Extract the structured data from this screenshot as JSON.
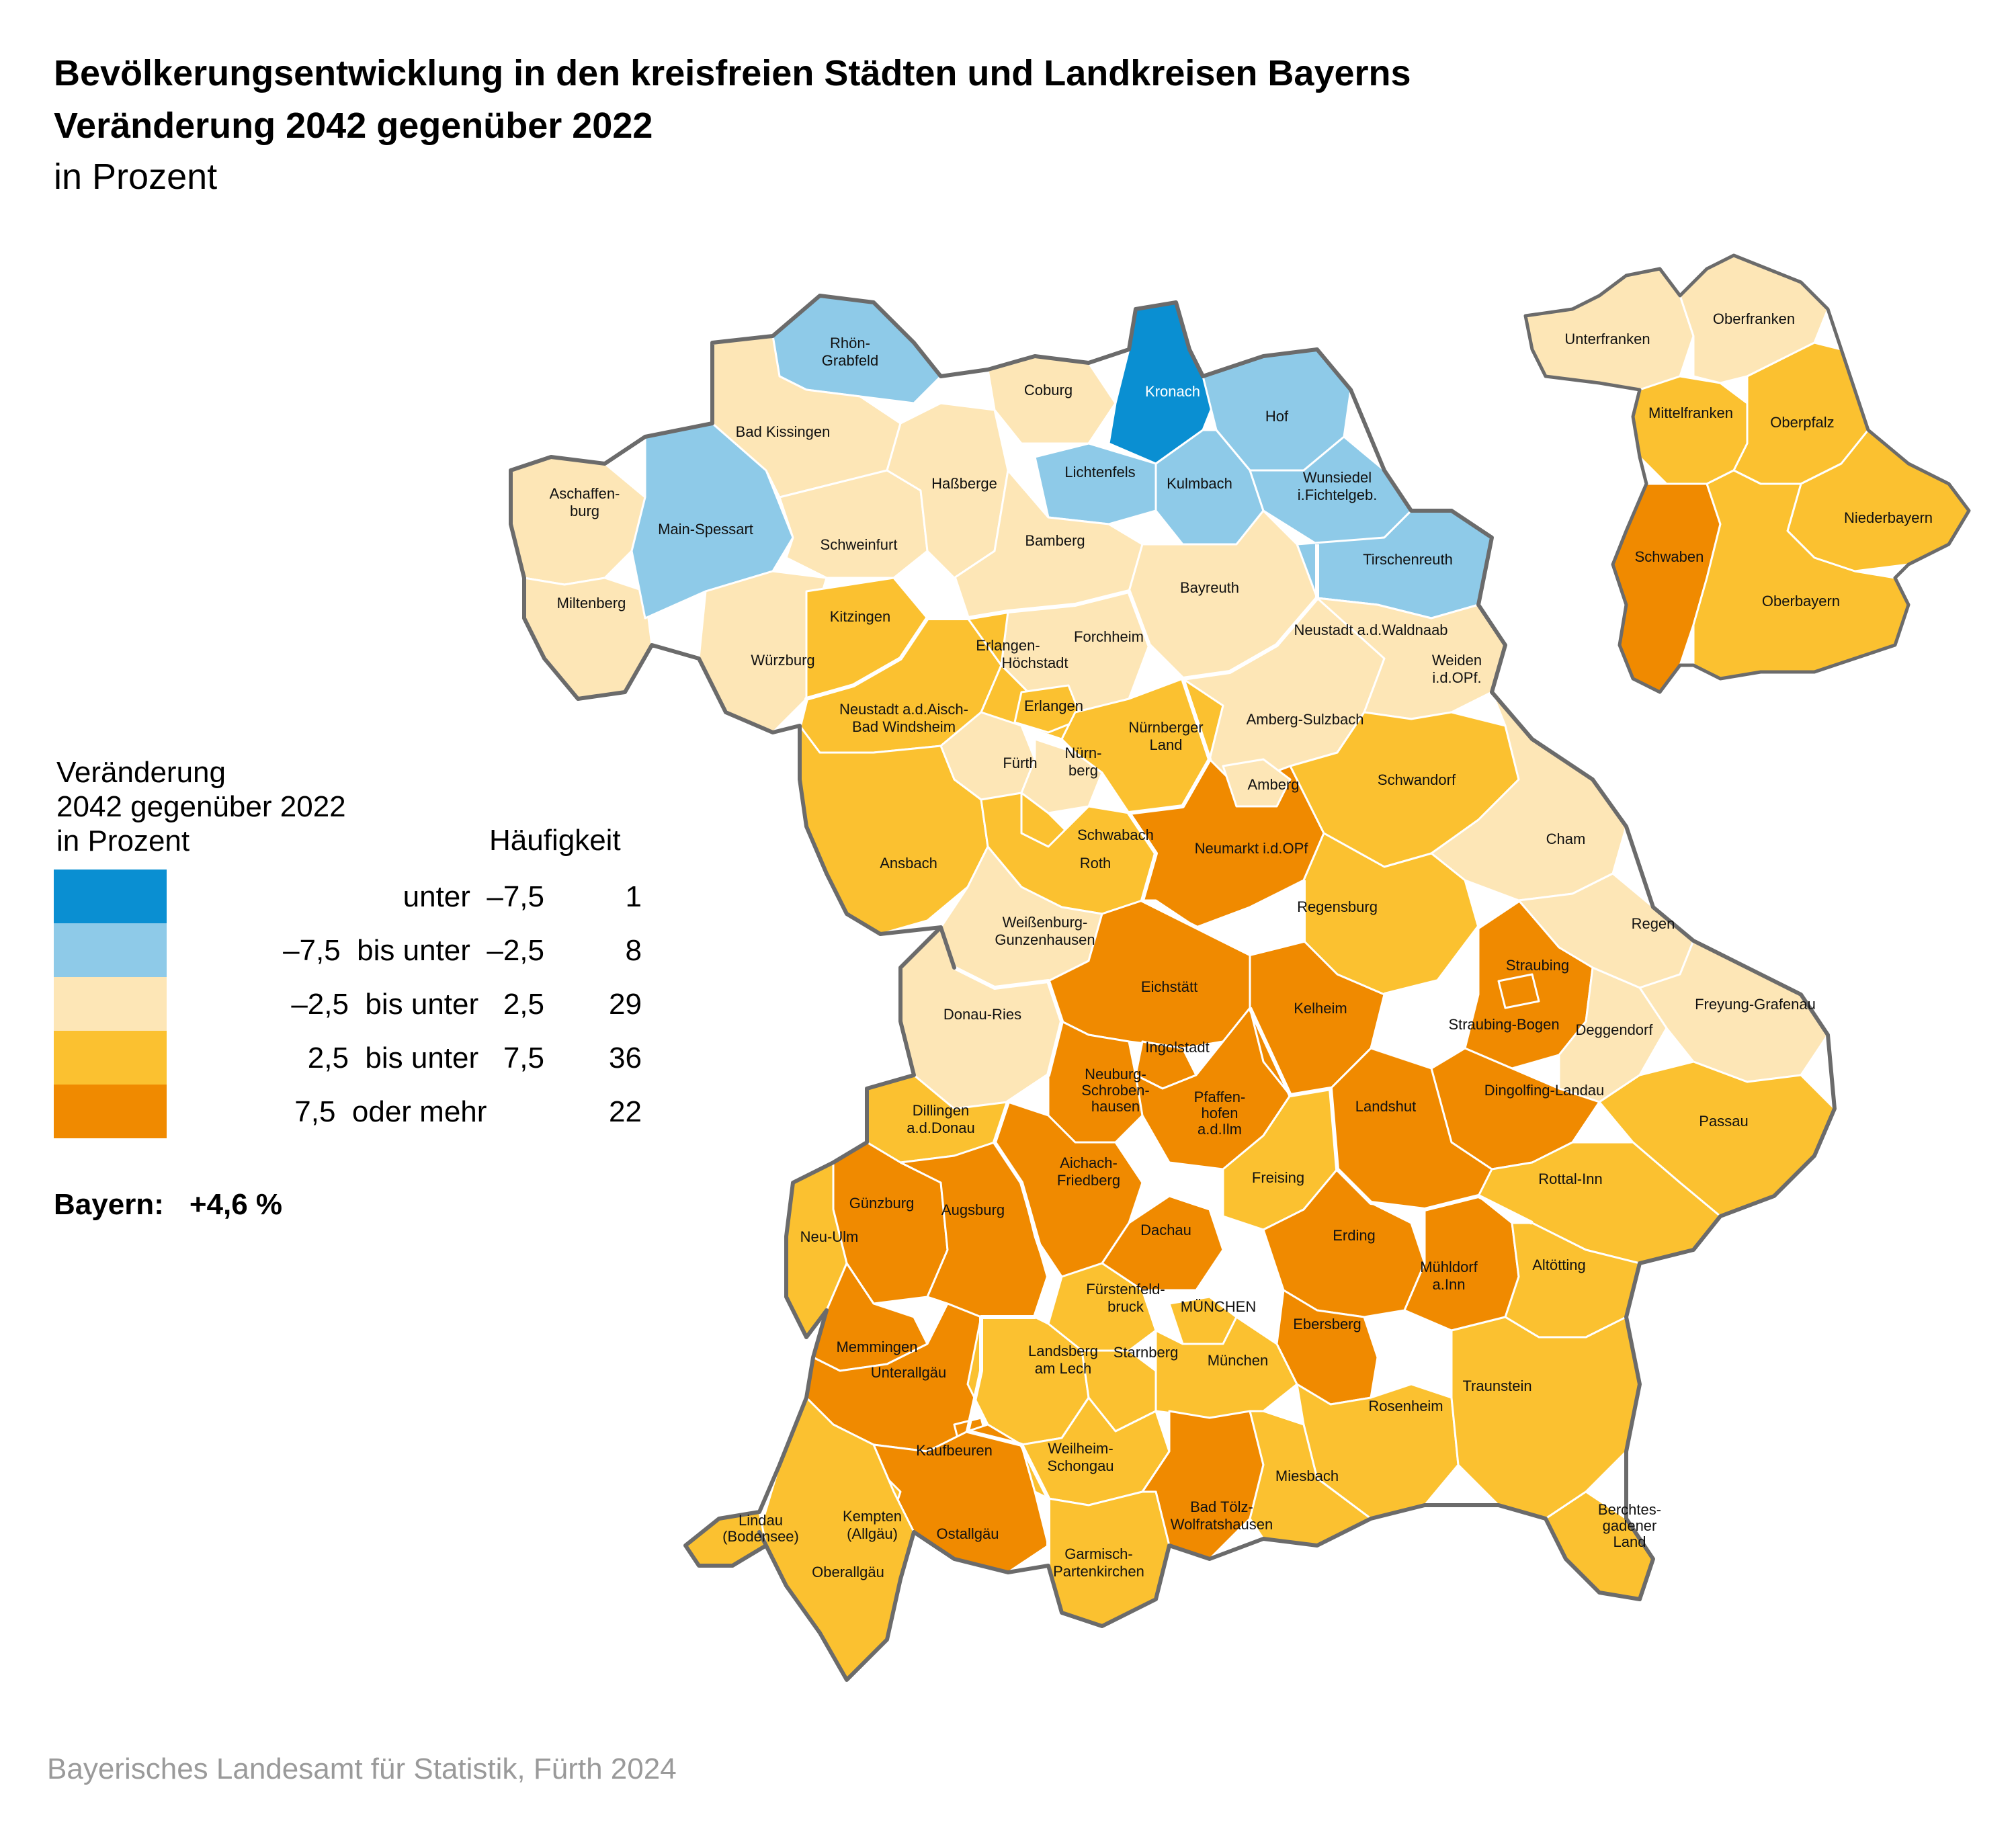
{
  "header": {
    "title_line1": "Bevölkerungsentwicklung in den kreisfreien Städten und Landkreisen Bayerns",
    "title_line2": "Veränderung 2042 gegenüber 2022",
    "title_line3": "in Prozent"
  },
  "colors": {
    "dark_blue": "#0a8fd2",
    "light_blue": "#8ecae8",
    "beige": "#fde6b6",
    "yellow": "#fbc130",
    "orange": "#f08a00",
    "border": "#6b6b6b",
    "source_gray": "#9a9a9a"
  },
  "legend": {
    "title_line1": "Veränderung",
    "title_line2": "2042 gegenüber 2022",
    "title_line3": "in Prozent",
    "frequency_header": "Häufigkeit",
    "items": [
      {
        "range": "unter  –7,5",
        "count": "1",
        "color": "#0a8fd2"
      },
      {
        "range": "–7,5  bis unter  –2,5",
        "count": "8",
        "color": "#8ecae8"
      },
      {
        "range": "–2,5  bis unter   2,5",
        "count": "29",
        "color": "#fde6b6"
      },
      {
        "range": "2,5  bis unter   7,5",
        "count": "36",
        "color": "#fbc130"
      },
      {
        "range": "7,5  oder mehr       ",
        "count": "22",
        "color": "#f08a00"
      }
    ]
  },
  "total": {
    "label": "Bayern:",
    "value": "+4,6 %"
  },
  "districts": {
    "rhoen_grabfeld": {
      "l1": "Rhön-",
      "l2": "Grabfeld",
      "class": "–7,5 bis unter –2,5"
    },
    "bad_kissingen": {
      "l1": "Bad Kissingen",
      "class": "–2,5 bis unter 2,5"
    },
    "aschaffenburg": {
      "l1": "Aschaffen-",
      "l2": "burg",
      "class": "–2,5 bis unter 2,5"
    },
    "main_spessart": {
      "l1": "Main-Spessart",
      "class": "–7,5 bis unter –2,5"
    },
    "miltenberg": {
      "l1": "Miltenberg",
      "class": "–2,5 bis unter 2,5"
    },
    "schweinfurt": {
      "l1": "Schweinfurt",
      "class": "–2,5 bis unter 2,5"
    },
    "hassberge": {
      "l1": "Haßberge",
      "class": "–2,5 bis unter 2,5"
    },
    "coburg": {
      "l1": "Coburg",
      "class": "–2,5 bis unter 2,5"
    },
    "kronach": {
      "l1": "Kronach",
      "class": "unter –7,5"
    },
    "hof": {
      "l1": "Hof",
      "class": "–7,5 bis unter –2,5"
    },
    "lichtenfels": {
      "l1": "Lichtenfels",
      "class": "–7,5 bis unter –2,5"
    },
    "kulmbach": {
      "l1": "Kulmbach",
      "class": "–7,5 bis unter –2,5"
    },
    "wunsiedel": {
      "l1": "Wunsiedel",
      "l2": "i.Fichtelgeb.",
      "class": "–7,5 bis unter –2,5"
    },
    "tirschenreuth": {
      "l1": "Tirschenreuth",
      "class": "–7,5 bis unter –2,5"
    },
    "bamberg": {
      "l1": "Bamberg",
      "class": "–2,5 bis unter 2,5"
    },
    "bayreuth": {
      "l1": "Bayreuth",
      "class": "–2,5 bis unter 2,5"
    },
    "wuerzburg": {
      "l1": "Würzburg",
      "class": "–2,5 bis unter 2,5"
    },
    "kitzingen": {
      "l1": "Kitzingen",
      "class": "2,5 bis unter 7,5"
    },
    "erlangen_hoechstadt": {
      "l1": "Erlangen-",
      "l2": "Höchstadt",
      "class": "2,5 bis unter 7,5"
    },
    "forchheim": {
      "l1": "Forchheim",
      "class": "–2,5 bis unter 2,5"
    },
    "neustadt_waldnaab": {
      "l1": "Neustadt a.d.Waldnaab",
      "class": "–2,5 bis unter 2,5"
    },
    "weiden": {
      "l1": "Weiden",
      "l2": "i.d.OPf.",
      "class": "–2,5 bis unter 2,5"
    },
    "neustadt_aisch": {
      "l1": "Neustadt a.d.Aisch-",
      "l2": "Bad Windsheim",
      "class": "2,5 bis unter 7,5"
    },
    "erlangen": {
      "l1": "Erlangen",
      "class": "2,5 bis unter 7,5"
    },
    "nuernberger_land": {
      "l1": "Nürnberger",
      "l2": "Land",
      "class": "2,5 bis unter 7,5"
    },
    "amberg_sulzbach": {
      "l1": "Amberg-Sulzbach",
      "class": "–2,5 bis unter 2,5"
    },
    "fuerth": {
      "l1": "Fürth",
      "class": "–2,5 bis unter 2,5"
    },
    "nuernberg": {
      "l1": "Nürn-",
      "l2": "berg",
      "class": "–2,5 bis unter 2,5"
    },
    "schwandorf": {
      "l1": "Schwandorf",
      "class": "2,5 bis unter 7,5"
    },
    "amberg": {
      "l1": "Amberg",
      "class": "–2,5 bis unter 2,5"
    },
    "cham": {
      "l1": "Cham",
      "class": "–2,5 bis unter 2,5"
    },
    "ansbach": {
      "l1": "Ansbach",
      "class": "2,5 bis unter 7,5"
    },
    "schwabach": {
      "l1": "Schwabach",
      "class": "2,5 bis unter 7,5"
    },
    "neumarkt": {
      "l1": "Neumarkt i.d.OPf",
      "class": "7,5 oder mehr"
    },
    "roth": {
      "l1": "Roth",
      "class": "2,5 bis unter 7,5"
    },
    "regensburg": {
      "l1": "Regensburg",
      "class": "2,5 bis unter 7,5"
    },
    "weissenburg": {
      "l1": "Weißenburg-",
      "l2": "Gunzenhausen",
      "class": "–2,5 bis unter 2,5"
    },
    "regen": {
      "l1": "Regen",
      "class": "–2,5 bis unter 2,5"
    },
    "straubing": {
      "l1": "Straubing",
      "class": "7,5 oder mehr"
    },
    "eichstaett": {
      "l1": "Eichstätt",
      "class": "7,5 oder mehr"
    },
    "kelheim": {
      "l1": "Kelheim",
      "class": "7,5 oder mehr"
    },
    "freyung": {
      "l1": "Freyung-Grafenau",
      "class": "–2,5 bis unter 2,5"
    },
    "donau_ries": {
      "l1": "Donau-Ries",
      "class": "–2,5 bis unter 2,5"
    },
    "straubing_bogen": {
      "l1": "Straubing-Bogen",
      "class": "7,5 oder mehr"
    },
    "deggendorf": {
      "l1": "Deggendorf",
      "class": "–2,5 bis unter 2,5"
    },
    "ingolstadt": {
      "l1": "Ingolstadt",
      "class": "7,5 oder mehr"
    },
    "neuburg": {
      "l1": "Neuburg-",
      "l2": "Schroben-",
      "l3": "hausen",
      "class": "7,5 oder mehr"
    },
    "pfaffenhofen": {
      "l1": "Pfaffen-",
      "l2": "hofen",
      "l3": "a.d.Ilm",
      "class": "7,5 oder mehr"
    },
    "landshut": {
      "l1": "Landshut",
      "class": "7,5 oder mehr"
    },
    "dingolfing": {
      "l1": "Dingolfing-Landau",
      "class": "7,5 oder mehr"
    },
    "passau": {
      "l1": "Passau",
      "class": "2,5 bis unter 7,5"
    },
    "dillingen": {
      "l1": "Dillingen",
      "l2": "a.d.Donau",
      "class": "2,5 bis unter 7,5"
    },
    "aichach": {
      "l1": "Aichach-",
      "l2": "Friedberg",
      "class": "7,5 oder mehr"
    },
    "freising": {
      "l1": "Freising",
      "class": "2,5 bis unter 7,5"
    },
    "rottal_inn": {
      "l1": "Rottal-Inn",
      "class": "2,5 bis unter 7,5"
    },
    "guenzburg": {
      "l1": "Günzburg",
      "class": "7,5 oder mehr"
    },
    "augsburg": {
      "l1": "Augsburg",
      "class": "7,5 oder mehr"
    },
    "dachau": {
      "l1": "Dachau",
      "class": "7,5 oder mehr"
    },
    "erding": {
      "l1": "Erding",
      "class": "7,5 oder mehr"
    },
    "neu_ulm": {
      "l1": "Neu-Ulm",
      "class": "2,5 bis unter 7,5"
    },
    "muehldorf": {
      "l1": "Mühldorf",
      "l2": "a.Inn",
      "class": "7,5 oder mehr"
    },
    "altoetting": {
      "l1": "Altötting",
      "class": "2,5 bis unter 7,5"
    },
    "fuerstenfeldbruck": {
      "l1": "Fürstenfeld-",
      "l2": "bruck",
      "class": "2,5 bis unter 7,5"
    },
    "muenchen_stadt": {
      "l1": "MÜNCHEN",
      "class": "2,5 bis unter 7,5"
    },
    "ebersberg": {
      "l1": "Ebersberg",
      "class": "7,5 oder mehr"
    },
    "memmingen": {
      "l1": "Memmingen",
      "class": "7,5 oder mehr"
    },
    "unterallgaeu": {
      "l1": "Unterallgäu",
      "class": "7,5 oder mehr"
    },
    "landsberg": {
      "l1": "Landsberg",
      "l2": "am Lech",
      "class": "2,5 bis unter 7,5"
    },
    "starnberg": {
      "l1": "Starnberg",
      "class": "2,5 bis unter 7,5"
    },
    "muenchen_land": {
      "l1": "München",
      "class": "2,5 bis unter 7,5"
    },
    "traunstein": {
      "l1": "Traunstein",
      "class": "2,5 bis unter 7,5"
    },
    "rosenheim": {
      "l1": "Rosenheim",
      "class": "2,5 bis unter 7,5"
    },
    "kaufbeuren": {
      "l1": "Kaufbeuren",
      "class": "7,5 oder mehr"
    },
    "weilheim": {
      "l1": "Weilheim-",
      "l2": "Schongau",
      "class": "2,5 bis unter 7,5"
    },
    "miesbach": {
      "l1": "Miesbach",
      "class": "2,5 bis unter 7,5"
    },
    "kempten": {
      "l1": "Kempten",
      "l2": "(Allgäu)",
      "class": "2,5 bis unter 7,5"
    },
    "lindau": {
      "l1": "Lindau",
      "l2": "(Bodensee)",
      "class": "2,5 bis unter 7,5"
    },
    "bad_toelz": {
      "l1": "Bad Tölz-",
      "l2": "Wolfratshausen",
      "class": "7,5 oder mehr"
    },
    "berchtesgaden": {
      "l1": "Berchtes-",
      "l2": "gadener",
      "l3": "Land",
      "class": "2,5 bis unter 7,5"
    },
    "ostallgaeu": {
      "l1": "Ostallgäu",
      "class": "7,5 oder mehr"
    },
    "oberallgaeu": {
      "l1": "Oberallgäu",
      "class": "2,5 bis unter 7,5"
    },
    "garmisch": {
      "l1": "Garmisch-",
      "l2": "Partenkirchen",
      "class": "2,5 bis unter 7,5"
    }
  },
  "inset": {
    "unterfranken": {
      "label": "Unterfranken",
      "class": "–2,5 bis unter 2,5"
    },
    "oberfranken": {
      "label": "Oberfranken",
      "class": "–2,5 bis unter 2,5"
    },
    "mittelfranken": {
      "label": "Mittelfranken",
      "class": "2,5 bis unter 7,5"
    },
    "oberpfalz": {
      "label": "Oberpfalz",
      "class": "2,5 bis unter 7,5"
    },
    "niederbayern": {
      "label": "Niederbayern",
      "class": "2,5 bis unter 7,5"
    },
    "schwaben": {
      "label": "Schwaben",
      "class": "7,5 oder mehr"
    },
    "oberbayern": {
      "label": "Oberbayern",
      "class": "2,5 bis unter 7,5"
    }
  },
  "source": "Bayerisches Landesamt für Statistik, Fürth 2024"
}
